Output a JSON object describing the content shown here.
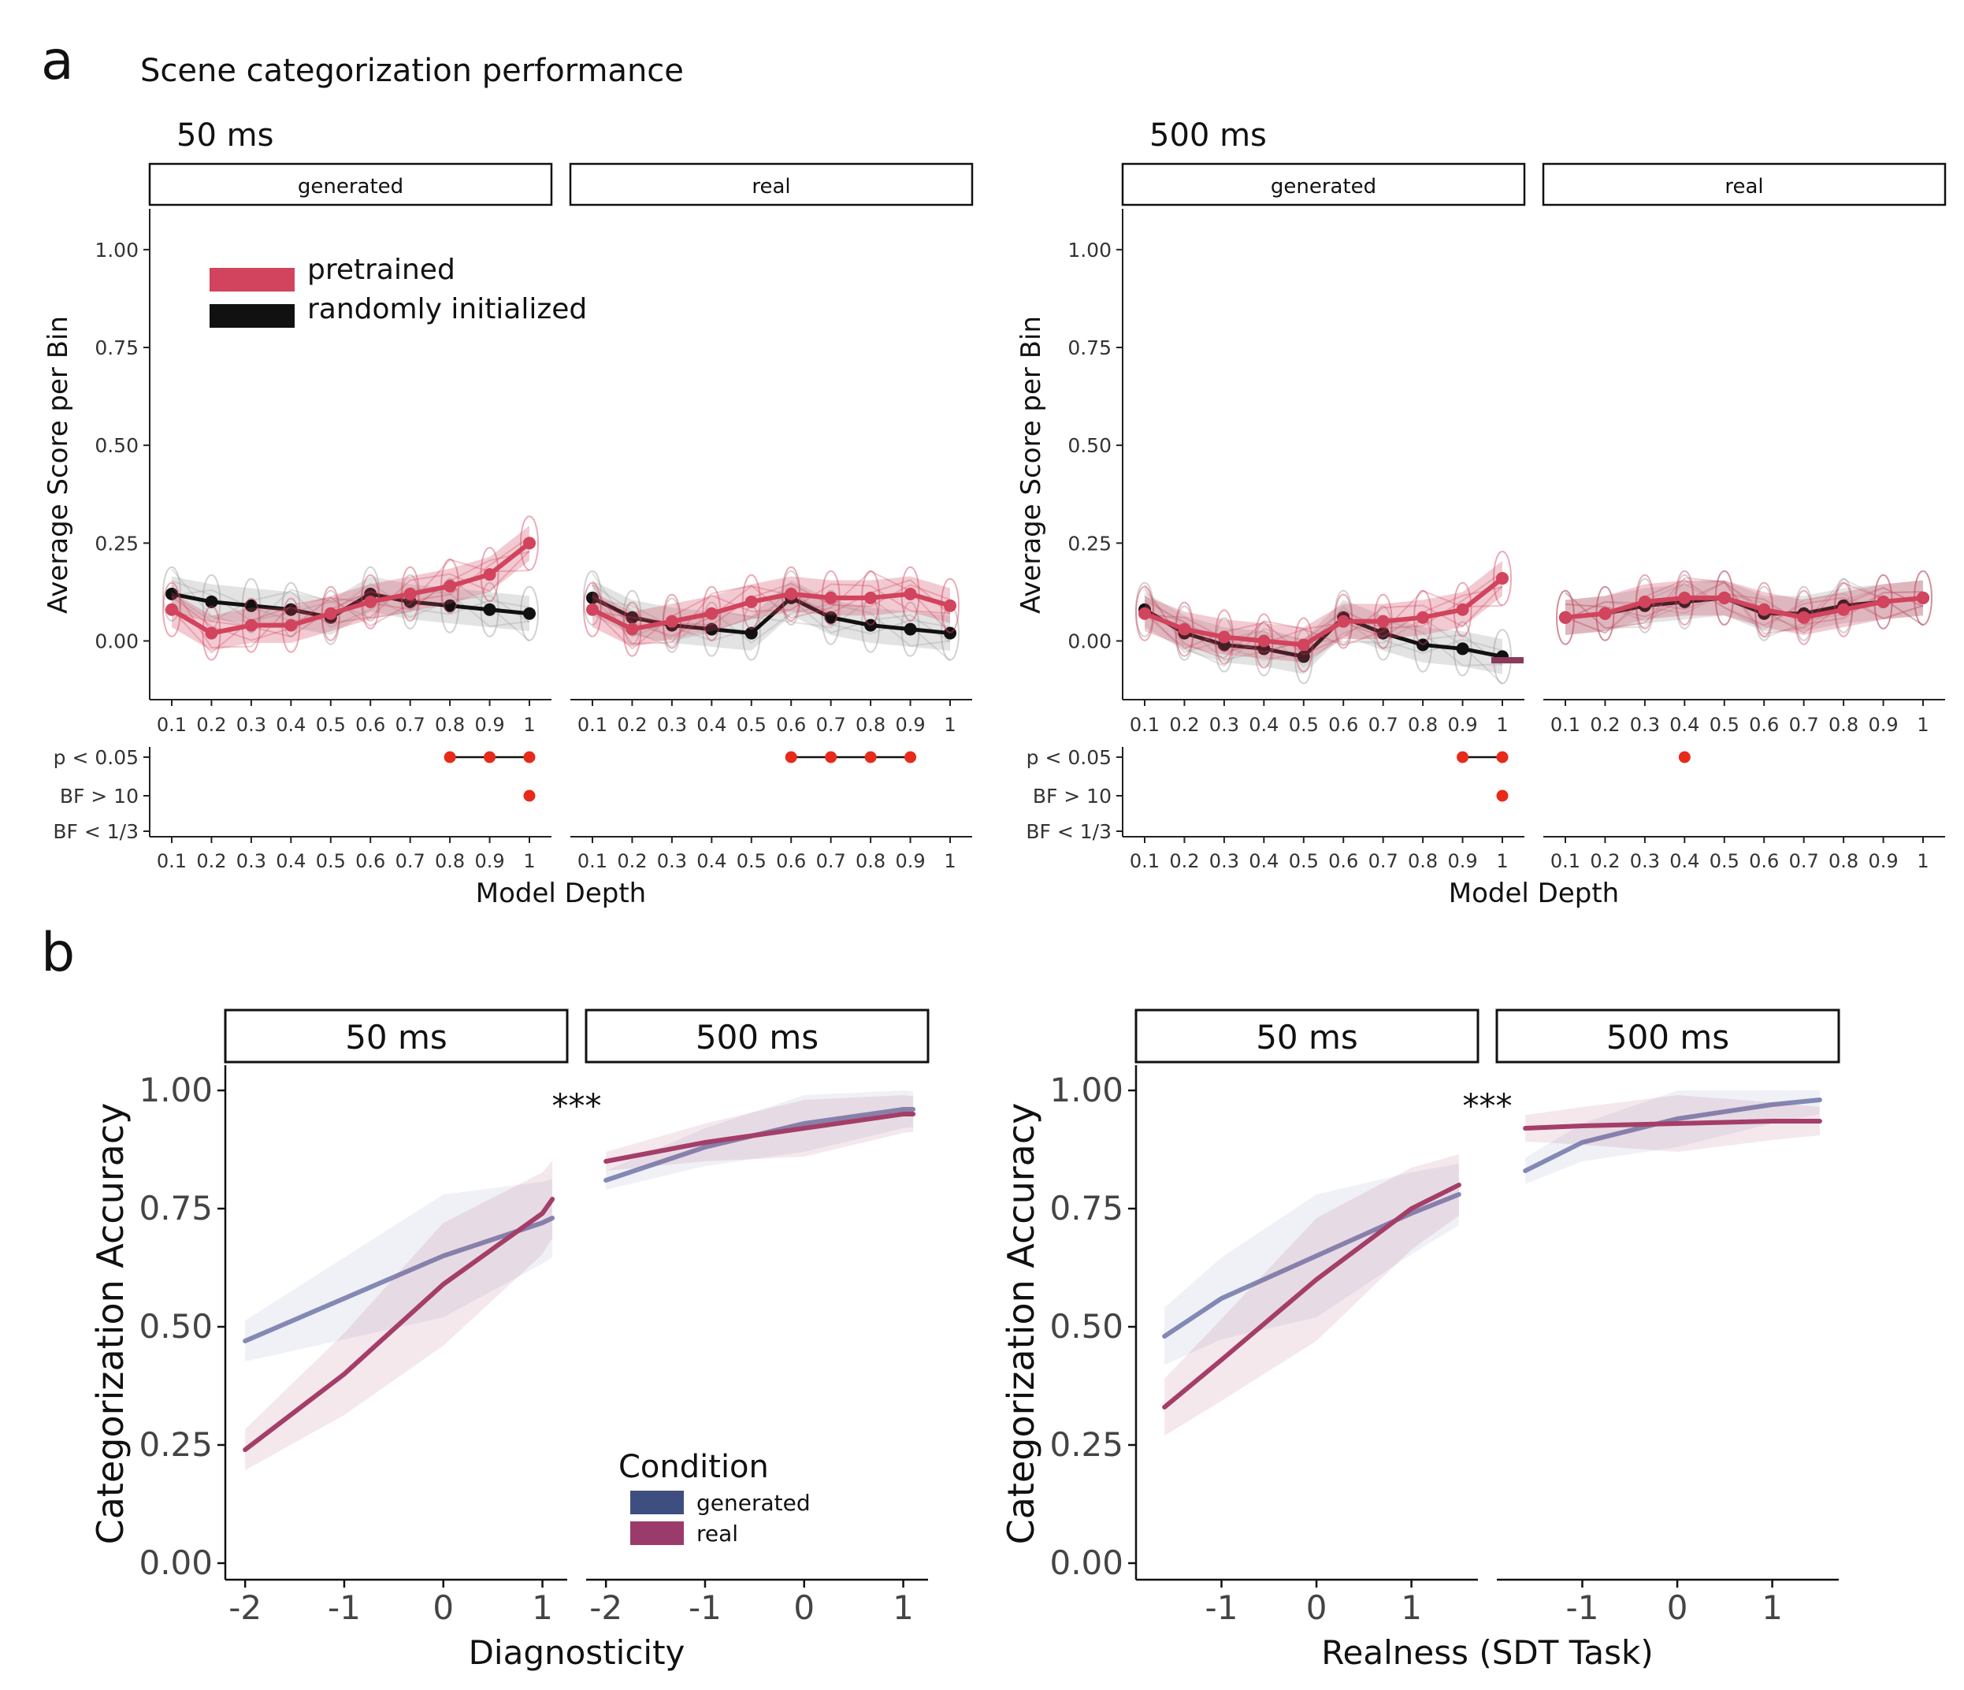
{
  "figure": {
    "panel_a_letter": "a",
    "panel_b_letter": "b",
    "panel_a_title": "Scene categorization performance"
  },
  "colors": {
    "pretrained": "#d2435d",
    "random": "#111111",
    "generated": "#8389b4",
    "real": "#a43e68",
    "sig_dot": "#e82a1a",
    "legend_generated": "#3e4e80",
    "legend_real": "#9b3b6b"
  },
  "panel_a": {
    "legend": [
      "pretrained",
      "randomly initialized"
    ],
    "y_label": "Average Score per Bin",
    "x_label": "Model Depth",
    "sig_labels": [
      "p < 0.05",
      "BF > 10",
      "BF < 1/3"
    ],
    "depth_ticks": [
      "0.1",
      "0.2",
      "0.3",
      "0.4",
      "0.5",
      "0.6",
      "0.7",
      "0.8",
      "0.9",
      "1"
    ],
    "groups": [
      {
        "time": "50 ms",
        "y_ticks": [
          "1.00",
          "0.75",
          "0.50",
          "0.25",
          "0.00"
        ],
        "facets": [
          {
            "label": "generated",
            "pretrained": [
              0.08,
              0.02,
              0.04,
              0.04,
              0.07,
              0.1,
              0.12,
              0.14,
              0.17,
              0.25
            ],
            "random": [
              0.12,
              0.1,
              0.09,
              0.08,
              0.06,
              0.12,
              0.1,
              0.09,
              0.08,
              0.07
            ],
            "p_sig": [
              0.8,
              0.9,
              1.0
            ],
            "bf10": [
              1.0
            ],
            "bf_low": []
          },
          {
            "label": "real",
            "pretrained": [
              0.08,
              0.03,
              0.05,
              0.07,
              0.1,
              0.12,
              0.11,
              0.11,
              0.12,
              0.09
            ],
            "random": [
              0.11,
              0.06,
              0.04,
              0.03,
              0.02,
              0.11,
              0.06,
              0.04,
              0.03,
              0.02
            ],
            "p_sig": [
              0.6,
              0.7,
              0.8,
              0.9
            ],
            "bf10": [],
            "bf_low": []
          }
        ]
      },
      {
        "time": "500 ms",
        "y_ticks": [
          "1.00",
          "0.75",
          "0.50",
          "0.25",
          "0.00"
        ],
        "facets": [
          {
            "label": "generated",
            "pretrained": [
              0.07,
              0.03,
              0.01,
              0.0,
              -0.01,
              0.05,
              0.05,
              0.06,
              0.08,
              0.16
            ],
            "random": [
              0.08,
              0.02,
              -0.01,
              -0.02,
              -0.04,
              0.06,
              0.02,
              -0.01,
              -0.02,
              -0.04
            ],
            "p_sig": [
              0.9,
              1.0
            ],
            "bf10": [
              1.0
            ],
            "bf_low": []
          },
          {
            "label": "real",
            "pretrained": [
              0.06,
              0.07,
              0.1,
              0.11,
              0.11,
              0.08,
              0.06,
              0.08,
              0.1,
              0.11
            ],
            "random": [
              0.06,
              0.07,
              0.09,
              0.1,
              0.11,
              0.07,
              0.07,
              0.09,
              0.1,
              0.11
            ],
            "p_sig": [
              0.4
            ],
            "bf10": [],
            "bf_low": []
          }
        ]
      }
    ]
  },
  "panel_b": {
    "y_label": "Categorization Accuracy",
    "y_ticks": [
      "1.00",
      "0.75",
      "0.50",
      "0.25",
      "0.00"
    ],
    "legend_title": "Condition",
    "legend": [
      "generated",
      "real"
    ],
    "significance": "***",
    "plots": [
      {
        "x_label": "Diagnosticity",
        "facets": [
          {
            "label": "50 ms",
            "x_ticks": [
              "-2",
              "-1",
              "0",
              "1"
            ],
            "generated": {
              "x": [
                -2.0,
                -1.0,
                0.0,
                1.0,
                1.1
              ],
              "y": [
                0.47,
                0.56,
                0.65,
                0.72,
                0.73
              ]
            },
            "real": {
              "x": [
                -2.0,
                -1.0,
                0.0,
                1.0,
                1.1
              ],
              "y": [
                0.24,
                0.4,
                0.59,
                0.74,
                0.77
              ]
            }
          },
          {
            "label": "500 ms",
            "x_ticks": [
              "-2",
              "-1",
              "0",
              "1"
            ],
            "generated": {
              "x": [
                -2.0,
                -1.0,
                0.0,
                1.0,
                1.1
              ],
              "y": [
                0.81,
                0.88,
                0.93,
                0.96,
                0.96
              ]
            },
            "real": {
              "x": [
                -2.0,
                -1.0,
                0.0,
                1.0,
                1.1
              ],
              "y": [
                0.85,
                0.89,
                0.92,
                0.95,
                0.95
              ]
            }
          }
        ]
      },
      {
        "x_label": "Realness (SDT Task)",
        "facets": [
          {
            "label": "50 ms",
            "x_ticks": [
              "-1",
              "0",
              "1"
            ],
            "generated": {
              "x": [
                -1.6,
                -1.0,
                0.0,
                1.0,
                1.5
              ],
              "y": [
                0.48,
                0.56,
                0.65,
                0.74,
                0.78
              ]
            },
            "real": {
              "x": [
                -1.6,
                -1.0,
                0.0,
                1.0,
                1.5
              ],
              "y": [
                0.33,
                0.43,
                0.6,
                0.75,
                0.8
              ]
            }
          },
          {
            "label": "500 ms",
            "x_ticks": [
              "-1",
              "0",
              "1"
            ],
            "generated": {
              "x": [
                -1.6,
                -1.0,
                0.0,
                1.0,
                1.5
              ],
              "y": [
                0.83,
                0.89,
                0.94,
                0.97,
                0.98
              ]
            },
            "real": {
              "x": [
                -1.6,
                -1.0,
                0.0,
                1.0,
                1.5
              ],
              "y": [
                0.92,
                0.925,
                0.93,
                0.935,
                0.935
              ]
            }
          }
        ]
      }
    ]
  }
}
